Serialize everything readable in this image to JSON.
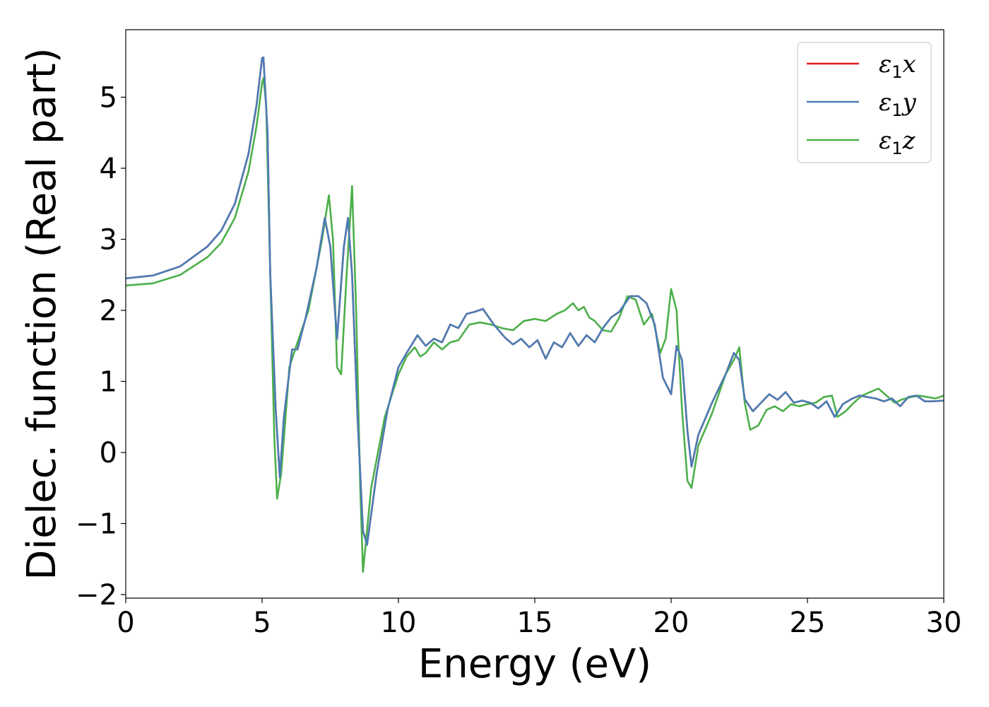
{
  "chart_data": {
    "type": "line",
    "xlabel": "Energy (eV)",
    "ylabel": "Dielec. function (Real part)",
    "xlim": [
      0,
      30
    ],
    "ylim": [
      -2.05,
      5.95
    ],
    "xticks": [
      0,
      5,
      10,
      15,
      20,
      25,
      30
    ],
    "yticks": [
      -2,
      -1,
      0,
      1,
      2,
      3,
      4,
      5
    ],
    "xtick_labels": [
      "0",
      "5",
      "10",
      "15",
      "20",
      "25",
      "30"
    ],
    "ytick_labels": [
      "−2",
      "−1",
      "0",
      "1",
      "2",
      "3",
      "4",
      "5"
    ],
    "grid": false,
    "legend_position": "top-right",
    "series": [
      {
        "name": "ε1x",
        "name_base": "ε",
        "name_sub": "1",
        "name_var": "x",
        "color": "#e41a1c",
        "x": [
          0,
          1,
          2,
          3,
          3.5,
          4,
          4.5,
          4.8,
          5.0,
          5.05,
          5.2,
          5.3,
          5.5,
          5.65,
          5.8,
          6.1,
          6.3,
          6.6,
          7.0,
          7.3,
          7.5,
          7.75,
          8.0,
          8.15,
          8.3,
          8.5,
          8.7,
          8.85,
          9.2,
          9.6,
          10.0,
          10.3,
          10.7,
          11.0,
          11.3,
          11.6,
          11.9,
          12.2,
          12.5,
          12.8,
          13.1,
          13.5,
          13.9,
          14.2,
          14.5,
          14.8,
          15.1,
          15.4,
          15.7,
          16.0,
          16.3,
          16.6,
          16.9,
          17.2,
          17.5,
          17.8,
          18.1,
          18.5,
          18.8,
          19.1,
          19.4,
          19.7,
          20.0,
          20.2,
          20.4,
          20.6,
          20.75,
          21.0,
          21.5,
          22.0,
          22.3,
          22.5,
          22.7,
          23.0,
          23.3,
          23.6,
          23.9,
          24.2,
          24.5,
          24.8,
          25.1,
          25.4,
          25.7,
          26.0,
          26.3,
          26.6,
          26.9,
          27.2,
          27.5,
          27.8,
          28.1,
          28.4,
          28.7,
          29.0,
          29.3,
          29.6,
          30.0
        ],
        "y": [
          2.45,
          2.49,
          2.62,
          2.9,
          3.12,
          3.5,
          4.2,
          4.9,
          5.55,
          5.56,
          4.5,
          2.5,
          0.6,
          -0.35,
          0.5,
          1.45,
          1.45,
          1.9,
          2.6,
          3.3,
          2.9,
          1.6,
          2.9,
          3.3,
          2.5,
          0.5,
          -1.1,
          -1.3,
          -0.3,
          0.6,
          1.2,
          1.4,
          1.65,
          1.5,
          1.6,
          1.55,
          1.8,
          1.75,
          1.95,
          1.98,
          2.02,
          1.8,
          1.62,
          1.52,
          1.6,
          1.48,
          1.58,
          1.32,
          1.55,
          1.48,
          1.68,
          1.5,
          1.65,
          1.55,
          1.75,
          1.9,
          1.98,
          2.2,
          2.2,
          2.1,
          1.8,
          1.05,
          0.82,
          1.5,
          1.3,
          0.3,
          -0.2,
          0.25,
          0.7,
          1.1,
          1.4,
          1.3,
          0.75,
          0.58,
          0.7,
          0.82,
          0.74,
          0.85,
          0.7,
          0.73,
          0.7,
          0.62,
          0.72,
          0.5,
          0.68,
          0.75,
          0.8,
          0.78,
          0.76,
          0.72,
          0.76,
          0.65,
          0.78,
          0.8,
          0.72,
          0.72,
          0.73
        ]
      },
      {
        "name": "ε1y",
        "name_base": "ε",
        "name_sub": "1",
        "name_var": "y",
        "color": "#4a7db5",
        "x": [
          0,
          1,
          2,
          3,
          3.5,
          4,
          4.5,
          4.8,
          5.0,
          5.05,
          5.2,
          5.3,
          5.5,
          5.65,
          5.8,
          6.1,
          6.3,
          6.6,
          7.0,
          7.3,
          7.5,
          7.75,
          8.0,
          8.15,
          8.3,
          8.5,
          8.7,
          8.85,
          9.2,
          9.6,
          10.0,
          10.3,
          10.7,
          11.0,
          11.3,
          11.6,
          11.9,
          12.2,
          12.5,
          12.8,
          13.1,
          13.5,
          13.9,
          14.2,
          14.5,
          14.8,
          15.1,
          15.4,
          15.7,
          16.0,
          16.3,
          16.6,
          16.9,
          17.2,
          17.5,
          17.8,
          18.1,
          18.5,
          18.8,
          19.1,
          19.4,
          19.7,
          20.0,
          20.2,
          20.4,
          20.6,
          20.75,
          21.0,
          21.5,
          22.0,
          22.3,
          22.5,
          22.7,
          23.0,
          23.3,
          23.6,
          23.9,
          24.2,
          24.5,
          24.8,
          25.1,
          25.4,
          25.7,
          26.0,
          26.3,
          26.6,
          26.9,
          27.2,
          27.5,
          27.8,
          28.1,
          28.4,
          28.7,
          29.0,
          29.3,
          29.6,
          30.0
        ],
        "y": [
          2.45,
          2.49,
          2.62,
          2.9,
          3.12,
          3.5,
          4.2,
          4.9,
          5.55,
          5.56,
          4.5,
          2.5,
          0.6,
          -0.35,
          0.5,
          1.45,
          1.45,
          1.9,
          2.6,
          3.3,
          2.9,
          1.6,
          2.9,
          3.3,
          2.5,
          0.5,
          -1.1,
          -1.3,
          -0.3,
          0.6,
          1.2,
          1.4,
          1.65,
          1.5,
          1.6,
          1.55,
          1.8,
          1.75,
          1.95,
          1.98,
          2.02,
          1.8,
          1.62,
          1.52,
          1.6,
          1.48,
          1.58,
          1.32,
          1.55,
          1.48,
          1.68,
          1.5,
          1.65,
          1.55,
          1.75,
          1.9,
          1.98,
          2.2,
          2.2,
          2.1,
          1.8,
          1.05,
          0.82,
          1.5,
          1.3,
          0.3,
          -0.2,
          0.25,
          0.7,
          1.1,
          1.4,
          1.3,
          0.75,
          0.58,
          0.7,
          0.82,
          0.74,
          0.85,
          0.7,
          0.73,
          0.7,
          0.62,
          0.72,
          0.5,
          0.68,
          0.75,
          0.8,
          0.78,
          0.76,
          0.72,
          0.76,
          0.65,
          0.78,
          0.8,
          0.72,
          0.72,
          0.73
        ]
      },
      {
        "name": "ε1z",
        "name_base": "ε",
        "name_sub": "1",
        "name_var": "z",
        "color": "#4daf4a",
        "x": [
          0,
          1,
          2,
          3,
          3.5,
          4,
          4.5,
          4.8,
          5.0,
          5.05,
          5.15,
          5.3,
          5.45,
          5.55,
          5.7,
          6.0,
          6.3,
          6.7,
          7.0,
          7.2,
          7.45,
          7.6,
          7.75,
          7.9,
          8.1,
          8.3,
          8.45,
          8.6,
          8.7,
          9.0,
          9.5,
          10.0,
          10.3,
          10.6,
          10.8,
          11.0,
          11.3,
          11.6,
          11.9,
          12.2,
          12.6,
          13.0,
          13.4,
          13.8,
          14.2,
          14.6,
          15.0,
          15.4,
          15.8,
          16.1,
          16.4,
          16.6,
          16.8,
          17.0,
          17.2,
          17.5,
          17.8,
          18.1,
          18.4,
          18.7,
          19.0,
          19.3,
          19.6,
          19.8,
          20.0,
          20.2,
          20.4,
          20.6,
          20.75,
          21.0,
          21.5,
          22.0,
          22.3,
          22.5,
          22.7,
          22.9,
          23.2,
          23.5,
          23.8,
          24.1,
          24.4,
          24.7,
          25.0,
          25.3,
          25.6,
          25.9,
          26.1,
          26.4,
          26.7,
          27.0,
          27.3,
          27.6,
          27.9,
          28.2,
          28.5,
          28.8,
          29.1,
          29.4,
          29.7,
          30.0
        ],
        "y": [
          2.35,
          2.38,
          2.5,
          2.75,
          2.95,
          3.3,
          3.95,
          4.6,
          5.2,
          5.27,
          4.9,
          2.5,
          0.2,
          -0.65,
          -0.3,
          1.2,
          1.55,
          2.0,
          2.6,
          3.0,
          3.62,
          3.0,
          1.2,
          1.1,
          2.5,
          3.75,
          2.0,
          -0.5,
          -1.68,
          -0.5,
          0.5,
          1.1,
          1.35,
          1.48,
          1.35,
          1.4,
          1.55,
          1.45,
          1.55,
          1.58,
          1.8,
          1.83,
          1.8,
          1.75,
          1.72,
          1.85,
          1.88,
          1.85,
          1.95,
          2.0,
          2.1,
          2.0,
          2.05,
          1.9,
          1.85,
          1.72,
          1.7,
          1.9,
          2.2,
          2.15,
          1.8,
          1.95,
          1.4,
          1.6,
          2.3,
          2.0,
          0.6,
          -0.4,
          -0.5,
          0.1,
          0.55,
          1.1,
          1.3,
          1.48,
          0.7,
          0.32,
          0.38,
          0.6,
          0.65,
          0.58,
          0.68,
          0.65,
          0.68,
          0.7,
          0.78,
          0.8,
          0.5,
          0.58,
          0.7,
          0.8,
          0.85,
          0.9,
          0.8,
          0.7,
          0.75,
          0.78,
          0.8,
          0.78,
          0.76,
          0.8
        ]
      }
    ]
  }
}
